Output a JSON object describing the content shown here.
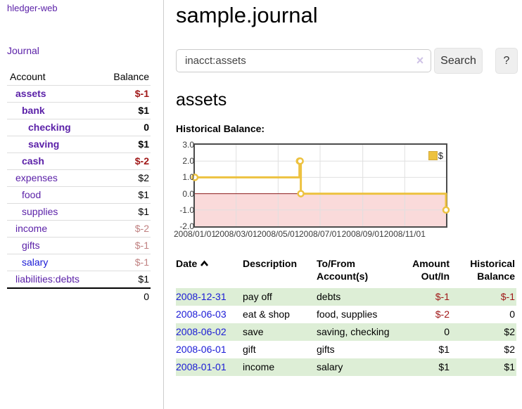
{
  "app": {
    "brand": "hledger-web"
  },
  "sidebar": {
    "journal_link": "Journal",
    "accounts_table": {
      "headers": {
        "account": "Account",
        "balance": "Balance"
      },
      "rows": [
        {
          "account": "assets",
          "depth": 1,
          "bold": true,
          "balance": "$-1",
          "balance_style": "neg-strong",
          "link_color": "purple"
        },
        {
          "account": "bank",
          "depth": 2,
          "bold": true,
          "balance": "$1",
          "balance_style": "pos",
          "link_color": "purple"
        },
        {
          "account": "checking",
          "depth": 3,
          "bold": true,
          "balance": "0",
          "balance_style": "pos",
          "link_color": "purple"
        },
        {
          "account": "saving",
          "depth": 3,
          "bold": true,
          "balance": "$1",
          "balance_style": "pos",
          "link_color": "purple"
        },
        {
          "account": "cash",
          "depth": 2,
          "bold": true,
          "balance": "$-2",
          "balance_style": "neg-strong",
          "link_color": "purple"
        },
        {
          "account": "expenses",
          "depth": 1,
          "bold": false,
          "balance": "$2",
          "balance_style": "pos",
          "link_color": "purple"
        },
        {
          "account": "food",
          "depth": 2,
          "bold": false,
          "balance": "$1",
          "balance_style": "pos",
          "link_color": "purple"
        },
        {
          "account": "supplies",
          "depth": 2,
          "bold": false,
          "balance": "$1",
          "balance_style": "pos",
          "link_color": "purple"
        },
        {
          "account": "income",
          "depth": 1,
          "bold": false,
          "balance": "$-2",
          "balance_style": "neg-muted",
          "link_color": "purple"
        },
        {
          "account": "gifts",
          "depth": 2,
          "bold": false,
          "balance": "$-1",
          "balance_style": "neg-muted",
          "link_color": "purple"
        },
        {
          "account": "salary",
          "depth": 2,
          "bold": false,
          "balance": "$-1",
          "balance_style": "neg-muted",
          "link_color": "blue"
        },
        {
          "account": "liabilities:debts",
          "depth": 1,
          "bold": false,
          "balance": "$1",
          "balance_style": "pos",
          "link_color": "purple"
        }
      ],
      "total": "0"
    }
  },
  "main": {
    "title": "sample.journal",
    "search": {
      "value": "inacct:assets",
      "clear_icon": "×",
      "button": "Search",
      "help_button": "?"
    },
    "heading": "assets",
    "chart_label": "Historical Balance:",
    "register_table": {
      "headers": [
        {
          "lines": [
            "Date"
          ],
          "align": "left",
          "sort": "asc"
        },
        {
          "lines": [
            "Description"
          ],
          "align": "left"
        },
        {
          "lines": [
            "To/From",
            "Account(s)"
          ],
          "align": "left"
        },
        {
          "lines": [
            "Amount",
            "Out/In"
          ],
          "align": "right"
        },
        {
          "lines": [
            "Historical",
            "Balance"
          ],
          "align": "right"
        }
      ],
      "rows": [
        {
          "date": "2008-12-31",
          "description": "pay off",
          "accounts": "debts",
          "amount": "$-1",
          "amount_neg": true,
          "balance": "$-1",
          "balance_neg": true,
          "shaded": true
        },
        {
          "date": "2008-06-03",
          "description": "eat & shop",
          "accounts": "food, supplies",
          "amount": "$-2",
          "amount_neg": true,
          "balance": "0",
          "balance_neg": false,
          "shaded": false
        },
        {
          "date": "2008-06-02",
          "description": "save",
          "accounts": "saving, checking",
          "amount": "0",
          "amount_neg": false,
          "balance": "$2",
          "balance_neg": false,
          "shaded": true
        },
        {
          "date": "2008-06-01",
          "description": "gift",
          "accounts": "gifts",
          "amount": "$1",
          "amount_neg": false,
          "balance": "$2",
          "balance_neg": false,
          "shaded": false
        },
        {
          "date": "2008-01-01",
          "description": "income",
          "accounts": "salary",
          "amount": "$1",
          "amount_neg": false,
          "balance": "$1",
          "balance_neg": false,
          "shaded": true
        }
      ]
    }
  },
  "chart_data": {
    "type": "line",
    "subtype": "step-with-markers",
    "title": "Historical Balance:",
    "series": [
      {
        "name": "$",
        "color": "#edc240",
        "points": [
          [
            "2008-01-01",
            1
          ],
          [
            "2008-06-01",
            2
          ],
          [
            "2008-06-02",
            2
          ],
          [
            "2008-06-03",
            0
          ],
          [
            "2008-12-31",
            -1
          ]
        ]
      }
    ],
    "x_ticks": [
      "2008/01/01",
      "2008/03/01",
      "2008/05/01",
      "2008/07/01",
      "2008/09/01",
      "2008/11/01"
    ],
    "y_ticks": [
      "3.0",
      "2.0",
      "1.0",
      "0.0",
      "-1.0",
      "-2.0"
    ],
    "ylim": [
      -2,
      3
    ],
    "x_range": [
      "2008-01-01",
      "2008-12-31"
    ],
    "legend_position": "top-right",
    "grid": true,
    "negative_region_fill": "#fadada",
    "zero_line_color": "#8b1a1a",
    "grid_color": "#e0e0e0"
  }
}
